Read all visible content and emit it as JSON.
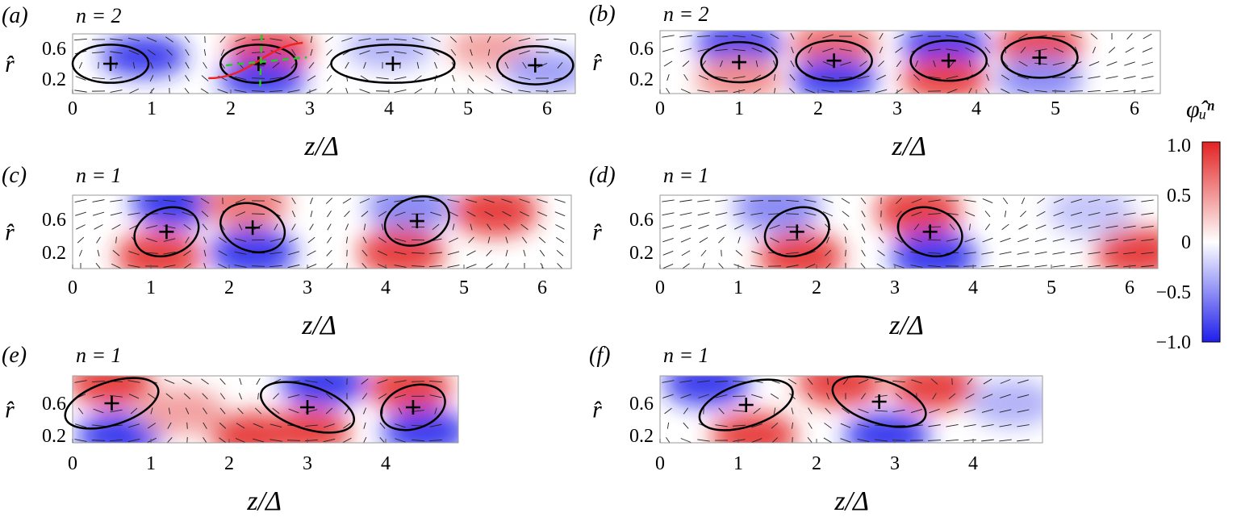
{
  "colors": {
    "positive": "#e32222",
    "neutral": "#ffffff",
    "negative": "#1e1eeb",
    "ellipse": "#000000",
    "red_curve": "#ee2222",
    "green_dashed": "#22cc22"
  },
  "colorbar": {
    "label": "φ̂ᵤⁿ",
    "ticks": [
      "1.0",
      "0.5",
      "0",
      "−0.5",
      "−1.0"
    ],
    "range": [
      -1.0,
      1.0
    ]
  },
  "chart_data": [
    {
      "type": "heatmap",
      "panel": "(a)",
      "mode": "n = 2",
      "xlabel": "z/Δ",
      "ylabel": "r̂",
      "xticks": [
        "0",
        "1",
        "2",
        "3",
        "4",
        "5",
        "6"
      ],
      "yticks": [
        "0.6",
        "0.2"
      ],
      "xlim": [
        0,
        6.3
      ],
      "ylim": [
        0.05,
        0.8
      ],
      "vortex_centres": [
        [
          0.48,
          0.4
        ],
        [
          2.35,
          0.4
        ],
        [
          4.05,
          0.4
        ],
        [
          5.85,
          0.38
        ]
      ],
      "field_blobs": [
        [
          0.9,
          0.5,
          -1
        ],
        [
          2.5,
          0.6,
          1
        ],
        [
          2.4,
          0.2,
          -1
        ],
        [
          4.0,
          0.6,
          -0.4
        ],
        [
          5.3,
          0.6,
          0.5
        ],
        [
          6.0,
          0.3,
          -0.5
        ]
      ]
    },
    {
      "type": "heatmap",
      "panel": "(b)",
      "mode": "n = 2",
      "xlabel": "z/Δ",
      "ylabel": "r̂",
      "xticks": [
        "0",
        "1",
        "2",
        "3",
        "4",
        "5",
        "6"
      ],
      "yticks": [
        "0.6",
        "0.2"
      ],
      "xlim": [
        0,
        6.3
      ],
      "ylim": [
        0.05,
        0.8
      ],
      "vortex_centres": [
        [
          1.0,
          0.42
        ],
        [
          2.2,
          0.44
        ],
        [
          3.65,
          0.44
        ],
        [
          4.8,
          0.48
        ]
      ],
      "field_blobs": [
        [
          1.0,
          0.65,
          -1
        ],
        [
          1.0,
          0.2,
          0.6
        ],
        [
          2.2,
          0.65,
          0.8
        ],
        [
          2.2,
          0.2,
          -1
        ],
        [
          3.6,
          0.65,
          -1
        ],
        [
          3.6,
          0.2,
          1
        ],
        [
          4.8,
          0.65,
          1
        ],
        [
          4.8,
          0.2,
          -0.6
        ]
      ]
    },
    {
      "type": "heatmap",
      "panel": "(c)",
      "mode": "n = 1",
      "xlabel": "z/Δ",
      "ylabel": "r̂",
      "xticks": [
        "0",
        "1",
        "2",
        "3",
        "4",
        "5",
        "6"
      ],
      "yticks": [
        "0.6",
        "0.2"
      ],
      "xlim": [
        0,
        6.3
      ],
      "ylim": [
        0.05,
        0.95
      ],
      "vortex_centres": [
        [
          1.2,
          0.45
        ],
        [
          2.3,
          0.5
        ],
        [
          4.4,
          0.58
        ]
      ],
      "field_blobs": [
        [
          1.3,
          0.8,
          -1
        ],
        [
          1.1,
          0.15,
          1
        ],
        [
          2.2,
          0.8,
          0.7
        ],
        [
          2.3,
          0.2,
          -1
        ],
        [
          4.3,
          0.75,
          -0.6
        ],
        [
          4.2,
          0.2,
          1
        ],
        [
          5.4,
          0.7,
          1
        ]
      ]
    },
    {
      "type": "heatmap",
      "panel": "(d)",
      "mode": "n = 1",
      "xlabel": "z/Δ",
      "ylabel": "r̂",
      "xticks": [
        "0",
        "1",
        "2",
        "3",
        "4",
        "5",
        "6"
      ],
      "yticks": [
        "0.6",
        "0.2"
      ],
      "xlim": [
        0,
        6.3
      ],
      "ylim": [
        0.05,
        0.95
      ],
      "vortex_centres": [
        [
          1.75,
          0.45
        ],
        [
          3.45,
          0.45
        ]
      ],
      "field_blobs": [
        [
          1.5,
          0.75,
          -0.6
        ],
        [
          1.8,
          0.15,
          1
        ],
        [
          3.3,
          0.7,
          1
        ],
        [
          3.5,
          0.15,
          -1
        ],
        [
          5.5,
          0.7,
          -0.3
        ],
        [
          6.1,
          0.2,
          1
        ]
      ]
    },
    {
      "type": "heatmap",
      "panel": "(e)",
      "mode": "n = 1",
      "xlabel": "z/Δ",
      "ylabel": "r̂",
      "xticks": [
        "0",
        "1",
        "2",
        "3",
        "4"
      ],
      "yticks": [
        "0.6",
        "0.2"
      ],
      "xlim": [
        0,
        4.9
      ],
      "ylim": [
        0.05,
        0.95
      ],
      "vortex_centres": [
        [
          0.5,
          0.6
        ],
        [
          3.0,
          0.55
        ],
        [
          4.35,
          0.55
        ]
      ],
      "field_blobs": [
        [
          0.5,
          0.85,
          1
        ],
        [
          0.6,
          0.2,
          -1
        ],
        [
          1.4,
          0.5,
          0.5
        ],
        [
          3.2,
          0.85,
          -1
        ],
        [
          3.0,
          0.25,
          1
        ],
        [
          2.3,
          0.2,
          1
        ],
        [
          4.3,
          0.8,
          1
        ],
        [
          4.5,
          0.25,
          -1
        ]
      ]
    },
    {
      "type": "heatmap",
      "panel": "(f)",
      "mode": "n = 1",
      "xlabel": "z/Δ",
      "ylabel": "r̂",
      "xticks": [
        "0",
        "1",
        "2",
        "3",
        "4"
      ],
      "yticks": [
        "0.6",
        "0.2"
      ],
      "xlim": [
        0,
        4.9
      ],
      "ylim": [
        0.05,
        0.95
      ],
      "vortex_centres": [
        [
          1.1,
          0.58
        ],
        [
          2.8,
          0.62
        ]
      ],
      "field_blobs": [
        [
          0.6,
          0.85,
          -1
        ],
        [
          1.2,
          0.2,
          1
        ],
        [
          2.3,
          0.85,
          1
        ],
        [
          2.9,
          0.2,
          -1
        ],
        [
          3.5,
          0.8,
          1
        ],
        [
          4.5,
          0.6,
          -0.4
        ]
      ]
    }
  ]
}
